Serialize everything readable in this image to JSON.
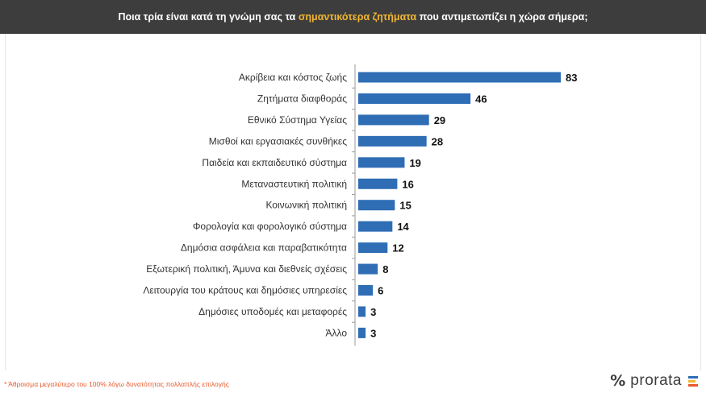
{
  "header": {
    "title_pre": "Ποια τρία είναι κατά τη γνώμη σας τα",
    "title_highlight": "σημαντικότερα ζητήματα",
    "title_post": "που αντιμετωπίζει η χώρα σήμερα;"
  },
  "colors": {
    "header_bg": "#3d3d3d",
    "highlight": "#f2b632",
    "bar": "#2f6db5",
    "footnote": "#e8582a"
  },
  "chart_data": {
    "type": "bar",
    "orientation": "horizontal",
    "categories": [
      "Ακρίβεια και κόστος ζωής",
      "Ζητήματα διαφθοράς",
      "Εθνικό Σύστημα Υγείας",
      "Μισθοί και εργασιακές συνθήκες",
      "Παιδεία και εκπαιδευτικό σύστημα",
      "Μεταναστευτική πολιτική",
      "Κοινωνική πολιτική",
      "Φορολογία και φορολογικό σύστημα",
      "Δημόσια ασφάλεια και παραβατικότητα",
      "Εξωτερική πολιτική, Άμυνα και διεθνείς σχέσεις",
      "Λειτουργία του κράτους και δημόσιες υπηρεσίες",
      "Δημόσιες υποδομές και μεταφορές",
      "Άλλο"
    ],
    "values": [
      83,
      46,
      29,
      28,
      19,
      16,
      15,
      14,
      12,
      8,
      6,
      3,
      3
    ],
    "xlim": [
      0,
      83
    ],
    "grid": false,
    "legend": "none"
  },
  "footnote": "* Άθροισμα μεγαλύτερο του 100% λόγω δυνατότητας πολλαπλής επιλογής",
  "logo": {
    "mark": "%",
    "word": "prorata",
    "bar_colors": [
      "#2f6db5",
      "#f2b632",
      "#e8582a"
    ]
  }
}
